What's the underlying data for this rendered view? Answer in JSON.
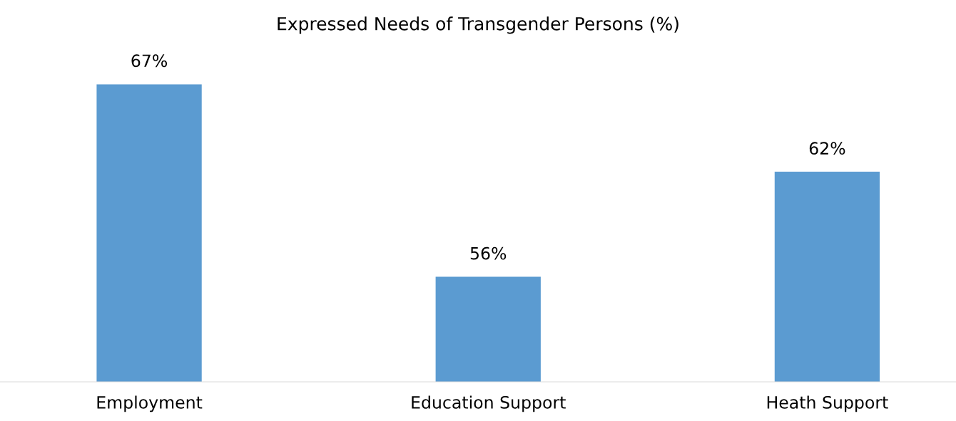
{
  "chart_data": {
    "type": "bar",
    "title": "Expressed Needs of Transgender Persons (%)",
    "categories": [
      "Employment",
      "Education Support",
      "Heath Support"
    ],
    "values": [
      67,
      56,
      62
    ],
    "value_labels": [
      "67%",
      "56%",
      "62%"
    ],
    "color": "#5b9bd1",
    "ylim": [
      50,
      67
    ],
    "tick_labels": "x",
    "grid": false,
    "legend": false
  }
}
